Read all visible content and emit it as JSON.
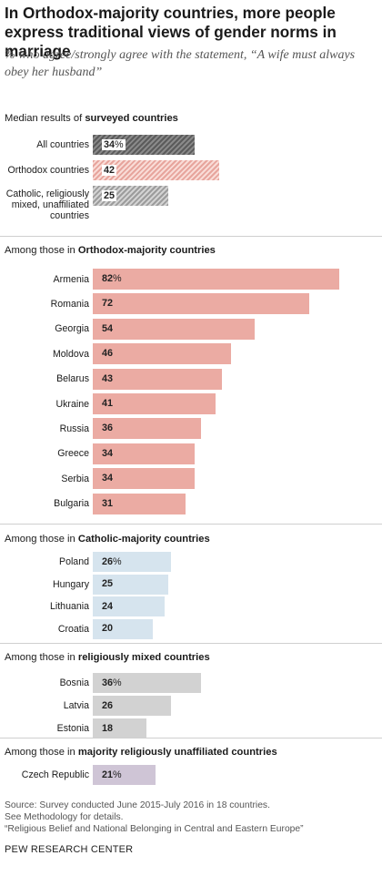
{
  "title": "In Orthodox-majority countries, more people express traditional views of gender norms in marriage",
  "subtitle": "% who agree/strongly agree with the statement, “A wife must always obey her husband”",
  "colors": {
    "orthodox": "#ebaba3",
    "catholic": "#d6e4ee",
    "mixed": "#d2d2d2",
    "unaffiliated": "#cfc5d6",
    "median_all": "#5b5b5b",
    "median_orthodox": "#e7a59d",
    "median_other": "#9c9c9c"
  },
  "chart_data": {
    "type": "bar",
    "orientation": "horizontal",
    "unit": "%",
    "groups": [
      {
        "id": "median",
        "heading_prefix": "Median results of ",
        "heading_bold": "surveyed countries",
        "hatched": true,
        "categories": [
          "All countries",
          "Orthodox countries",
          "Catholic, religiously mixed, unaffiliated countries"
        ],
        "values": [
          34,
          42,
          25
        ]
      },
      {
        "id": "orthodox",
        "heading_prefix": "Among those in ",
        "heading_bold": "Orthodox-majority countries",
        "hatched": false,
        "categories": [
          "Armenia",
          "Romania",
          "Georgia",
          "Moldova",
          "Belarus",
          "Ukraine",
          "Russia",
          "Greece",
          "Serbia",
          "Bulgaria"
        ],
        "values": [
          82,
          72,
          54,
          46,
          43,
          41,
          36,
          34,
          34,
          31
        ]
      },
      {
        "id": "catholic",
        "heading_prefix": "Among those in ",
        "heading_bold": "Catholic-majority countries",
        "hatched": false,
        "categories": [
          "Poland",
          "Hungary",
          "Lithuania",
          "Croatia"
        ],
        "values": [
          26,
          25,
          24,
          20
        ]
      },
      {
        "id": "mixed",
        "heading_prefix": "Among those in ",
        "heading_bold": "religiously mixed countries",
        "hatched": false,
        "categories": [
          "Bosnia",
          "Latvia",
          "Estonia"
        ],
        "values": [
          36,
          26,
          18
        ]
      },
      {
        "id": "unaffiliated",
        "heading_prefix": "Among those in ",
        "heading_bold": "majority religiously unaffiliated countries",
        "hatched": false,
        "categories": [
          "Czech Republic"
        ],
        "values": [
          21
        ]
      }
    ]
  },
  "source_lines": [
    "Source: Survey conducted June 2015-July 2016 in 18 countries.",
    "See Methodology for details.",
    "“Religious Belief and National Belonging in Central and Eastern Europe”"
  ],
  "brand": "PEW RESEARCH CENTER"
}
